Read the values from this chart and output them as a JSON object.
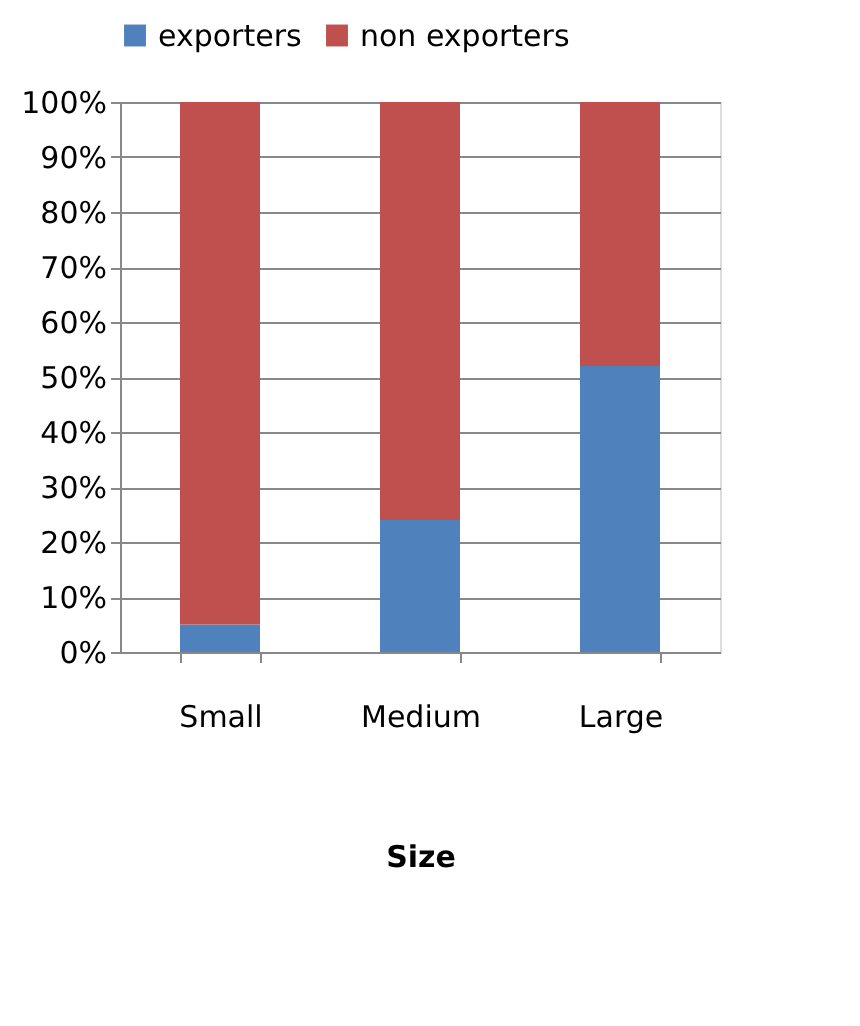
{
  "chart_data": {
    "type": "bar",
    "stacked": true,
    "xlabel": "Size",
    "categories": [
      "Small",
      "Medium",
      "Large"
    ],
    "series": [
      {
        "name": "exporters",
        "color": "#4f81bd",
        "values": [
          5,
          24,
          52
        ]
      },
      {
        "name": "non exporters",
        "color": "#c0504d",
        "values": [
          95,
          76,
          48
        ]
      }
    ],
    "ylim": [
      0,
      100
    ],
    "yticks": [
      {
        "value": 0,
        "label": "0%"
      },
      {
        "value": 10,
        "label": "10%"
      },
      {
        "value": 20,
        "label": "20%"
      },
      {
        "value": 30,
        "label": "30%"
      },
      {
        "value": 40,
        "label": "40%"
      },
      {
        "value": 50,
        "label": "50%"
      },
      {
        "value": 60,
        "label": "60%"
      },
      {
        "value": 70,
        "label": "70%"
      },
      {
        "value": 80,
        "label": "80%"
      },
      {
        "value": 90,
        "label": "90%"
      },
      {
        "value": 100,
        "label": "100%"
      }
    ],
    "grid": "y",
    "legend": "top"
  }
}
